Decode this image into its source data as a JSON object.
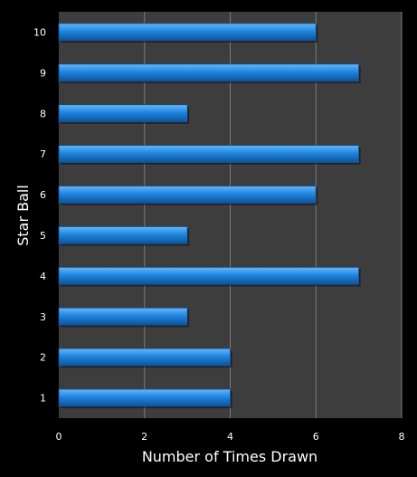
{
  "chart_data": {
    "type": "bar",
    "orientation": "horizontal",
    "categories": [
      "1",
      "2",
      "3",
      "4",
      "5",
      "6",
      "7",
      "8",
      "9",
      "10"
    ],
    "values": [
      4,
      4,
      3,
      7,
      3,
      6,
      7,
      3,
      7,
      6
    ],
    "xlabel": "Number of Times Drawn",
    "ylabel": "Star Ball",
    "xlim": [
      0,
      8
    ],
    "xticks": [
      0,
      2,
      4,
      6,
      8
    ],
    "grid": "vertical",
    "legend": "none",
    "colors": {
      "background": "#000000",
      "plot_area": "#3d3d3d",
      "bar": "#1e86e2",
      "bar_highlight": "#6ab6f5",
      "bar_shadow": "#0f5296",
      "gridline": "#7a7a7a",
      "text": "#ffffff"
    }
  }
}
